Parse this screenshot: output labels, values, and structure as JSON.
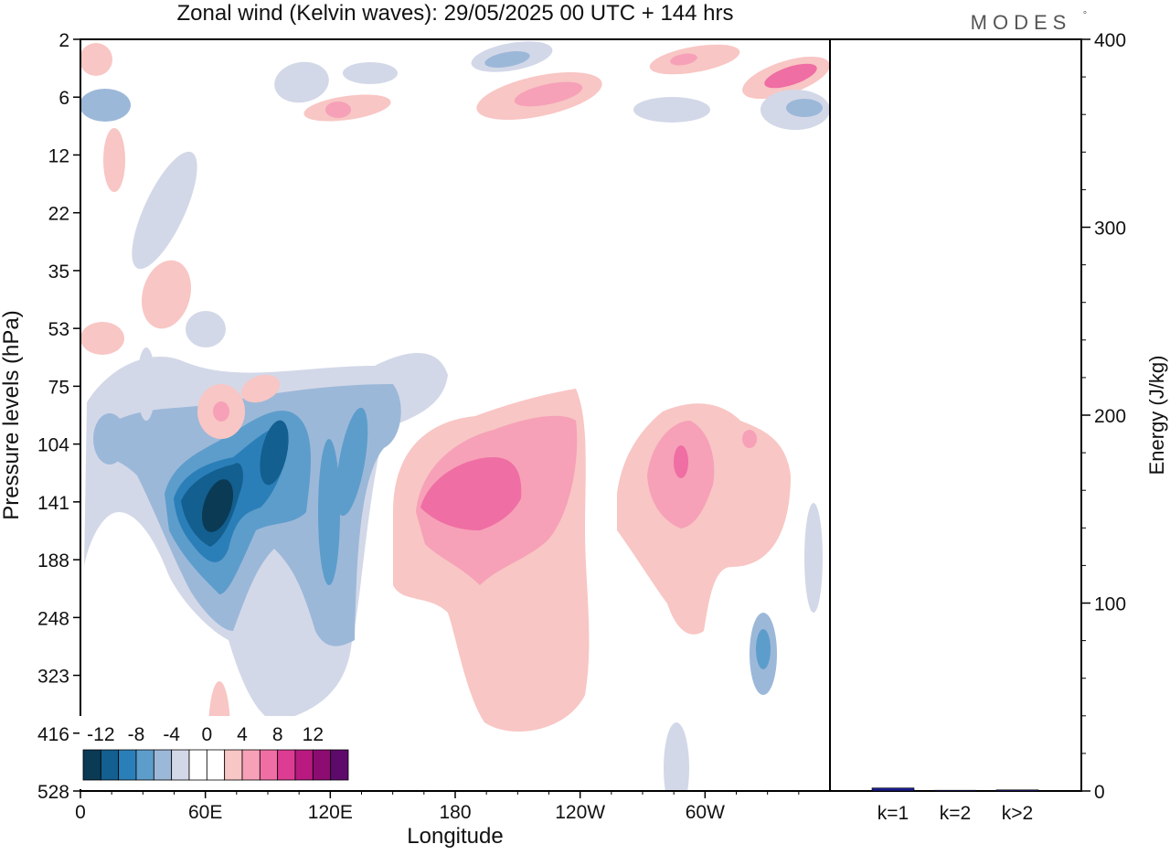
{
  "title": "Zonal wind (Kelvin waves):  29/05/2025  00 UTC  + 144 hrs",
  "brand": "MODES",
  "brand_mark": "°",
  "chart_data": [
    {
      "type": "heatmap",
      "variable": "Zonal wind (Kelvin waves)",
      "xlabel": "Longitude",
      "ylabel": "Pressure levels (hPa)",
      "x_ticks": [
        "0",
        "60E",
        "120E",
        "180",
        "120W",
        "60W"
      ],
      "x_tick_values": [
        0,
        60,
        120,
        180,
        240,
        300
      ],
      "xlim": [
        0,
        360
      ],
      "y_ticks": [
        "2",
        "6",
        "12",
        "22",
        "35",
        "53",
        "75",
        "104",
        "141",
        "188",
        "248",
        "323",
        "416",
        "528"
      ],
      "ylim": [
        "528",
        "2"
      ],
      "colorbar": {
        "tick_labels": [
          "-12",
          "-8",
          "-4",
          "0",
          "4",
          "8",
          "12"
        ],
        "levels": [
          -14,
          -12,
          -10,
          -8,
          -6,
          -4,
          -2,
          0,
          2,
          4,
          6,
          8,
          10,
          12,
          14
        ],
        "colors": [
          "#0b3a55",
          "#135f8f",
          "#2b7fb8",
          "#5d9dcb",
          "#9cb8d9",
          "#d3d8e8",
          "#ffffff",
          "#ffffff",
          "#f8c6c4",
          "#f6a1b8",
          "#ef6ea3",
          "#dd3c93",
          "#b81a7f",
          "#8c0c72",
          "#5e0a6b"
        ]
      },
      "features": [
        {
          "sign": "negative",
          "peak": -14,
          "lon_range": [
            40,
            100
          ],
          "p_range": [
            "104",
            "248"
          ]
        },
        {
          "sign": "negative",
          "peak": -6,
          "lon_range": [
            100,
            150
          ],
          "p_range": [
            "104",
            "323"
          ]
        },
        {
          "sign": "positive",
          "peak": 8,
          "lon_range": [
            150,
            240
          ],
          "p_range": [
            "75",
            "416"
          ]
        },
        {
          "sign": "positive",
          "peak": 8,
          "lon_range": [
            260,
            340
          ],
          "p_range": [
            "75",
            "323"
          ]
        },
        {
          "sign": "positive",
          "peak": 8,
          "lon_range": [
            300,
            360
          ],
          "p_range": [
            "2",
            "6"
          ]
        },
        {
          "sign": "negative",
          "peak": -6,
          "lon_range": [
            320,
            360
          ],
          "p_range": [
            "6",
            "12"
          ]
        }
      ]
    },
    {
      "type": "bar",
      "categories": [
        "k=1",
        "k=2",
        "k>2"
      ],
      "values": [
        1.6,
        0.4,
        0.6
      ],
      "ylabel": "Energy (J/kg)",
      "ylim": [
        0,
        400
      ],
      "y_ticks": [
        0,
        100,
        200,
        300,
        400
      ],
      "bar_color": "#1a1a8c"
    }
  ]
}
